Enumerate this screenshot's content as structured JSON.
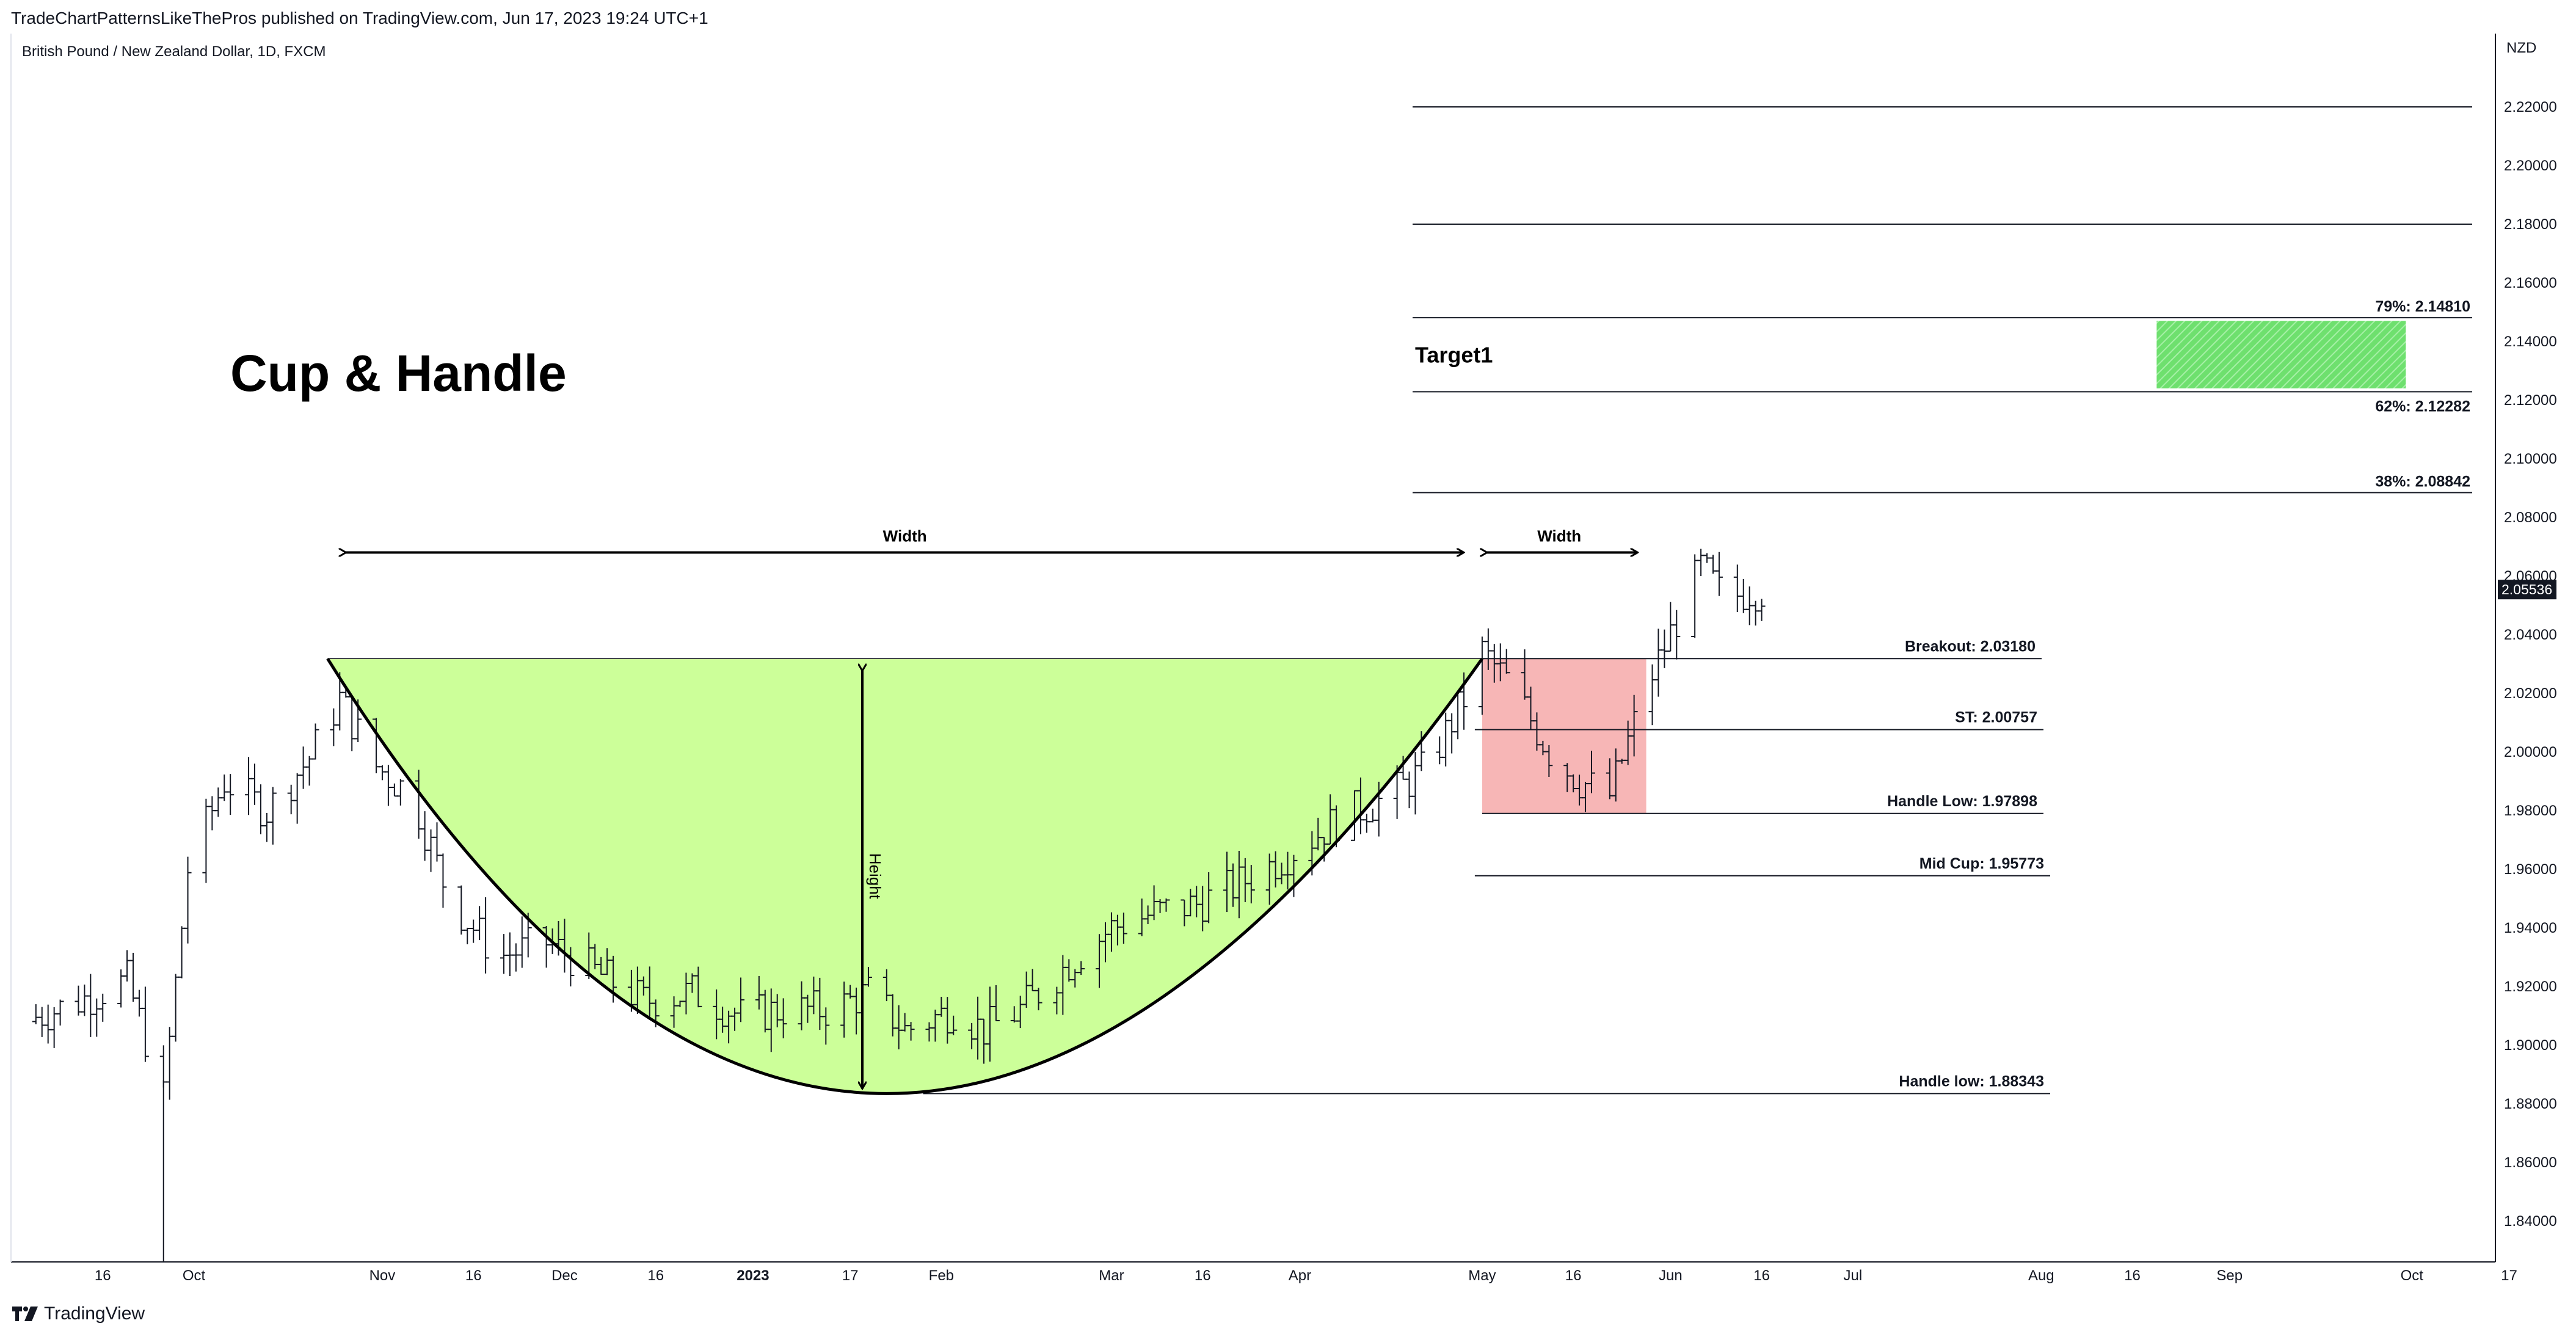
{
  "header": {
    "publisher_line": "TradeChartPatternsLikeThePros published on TradingView.com, Jun 17, 2023 19:24 UTC+1",
    "symbol_line": "British Pound / New Zealand Dollar, 1D, FXCM"
  },
  "footer": {
    "brand": "TradingView"
  },
  "chart_data": {
    "type": "ohlc",
    "currency": "NZD",
    "last_price": "2.05536",
    "y_ticks": [
      "2.22000",
      "2.20000",
      "2.18000",
      "2.16000",
      "2.14000",
      "2.12000",
      "2.10000",
      "2.08000",
      "2.06000",
      "2.04000",
      "2.02000",
      "2.00000",
      "1.98000",
      "1.96000",
      "1.94000",
      "1.92000",
      "1.90000",
      "1.88000",
      "1.86000",
      "1.84000"
    ],
    "y_tick_values": [
      2.22,
      2.2,
      2.18,
      2.16,
      2.14,
      2.12,
      2.1,
      2.08,
      2.06,
      2.04,
      2.02,
      2.0,
      1.98,
      1.96,
      1.94,
      1.92,
      1.9,
      1.88,
      1.86,
      1.84
    ],
    "ylim": [
      1.826,
      2.245
    ],
    "x_ticks": [
      {
        "label": "16",
        "date": "2022-09-16",
        "bold": false
      },
      {
        "label": "Oct",
        "date": "2022-10-01",
        "bold": false
      },
      {
        "label": "Nov",
        "date": "2022-11-01",
        "bold": false
      },
      {
        "label": "16",
        "date": "2022-11-16",
        "bold": false
      },
      {
        "label": "Dec",
        "date": "2022-12-01",
        "bold": false
      },
      {
        "label": "16",
        "date": "2022-12-16",
        "bold": false
      },
      {
        "label": "2023",
        "date": "2023-01-01",
        "bold": true
      },
      {
        "label": "17",
        "date": "2023-01-17",
        "bold": false
      },
      {
        "label": "Feb",
        "date": "2023-02-01",
        "bold": false
      },
      {
        "label": "Mar",
        "date": "2023-03-01",
        "bold": false
      },
      {
        "label": "16",
        "date": "2023-03-16",
        "bold": false
      },
      {
        "label": "Apr",
        "date": "2023-04-01",
        "bold": false
      },
      {
        "label": "May",
        "date": "2023-05-01",
        "bold": false
      },
      {
        "label": "16",
        "date": "2023-05-16",
        "bold": false
      },
      {
        "label": "Jun",
        "date": "2023-06-01",
        "bold": false
      },
      {
        "label": "16",
        "date": "2023-06-16",
        "bold": false
      },
      {
        "label": "Jul",
        "date": "2023-07-01",
        "bold": false
      },
      {
        "label": "Aug",
        "date": "2023-08-01",
        "bold": false
      },
      {
        "label": "16",
        "date": "2023-08-16",
        "bold": false
      },
      {
        "label": "Sep",
        "date": "2023-09-01",
        "bold": false
      },
      {
        "label": "Oct",
        "date": "2023-10-01",
        "bold": false
      },
      {
        "label": "17",
        "date": "2023-10-17",
        "bold": false
      }
    ],
    "price_path": [
      [
        "2022-09-03",
        1.908
      ],
      [
        "2022-09-12",
        1.915
      ],
      [
        "2022-09-20",
        1.922
      ],
      [
        "2022-09-26",
        1.882
      ],
      [
        "2022-09-30",
        1.96
      ],
      [
        "2022-10-06",
        1.99
      ],
      [
        "2022-10-13",
        1.98
      ],
      [
        "2022-10-20",
        1.998
      ],
      [
        "2022-10-25",
        2.018
      ],
      [
        "2022-10-31",
        1.995
      ],
      [
        "2022-11-06",
        1.985
      ],
      [
        "2022-11-12",
        1.95
      ],
      [
        "2022-11-20",
        1.93
      ],
      [
        "2022-11-28",
        1.935
      ],
      [
        "2022-12-06",
        1.925
      ],
      [
        "2022-12-14",
        1.915
      ],
      [
        "2022-12-22",
        1.918
      ],
      [
        "2022-12-30",
        1.91
      ],
      [
        "2023-01-06",
        1.912
      ],
      [
        "2023-01-14",
        1.912
      ],
      [
        "2023-01-20",
        1.918
      ],
      [
        "2023-01-26",
        1.905
      ],
      [
        "2023-02-03",
        1.912
      ],
      [
        "2023-02-08",
        1.905
      ],
      [
        "2023-02-14",
        1.912
      ],
      [
        "2023-02-22",
        1.928
      ],
      [
        "2023-03-01",
        1.94
      ],
      [
        "2023-03-08",
        1.945
      ],
      [
        "2023-03-15",
        1.948
      ],
      [
        "2023-03-22",
        1.955
      ],
      [
        "2023-03-30",
        1.965
      ],
      [
        "2023-04-08",
        1.978
      ],
      [
        "2023-04-16",
        1.985
      ],
      [
        "2023-04-22",
        1.995
      ],
      [
        "2023-04-28",
        2.018
      ],
      [
        "2023-05-01",
        2.034
      ],
      [
        "2023-05-06",
        2.022
      ],
      [
        "2023-05-12",
        2.0
      ],
      [
        "2023-05-17",
        1.99
      ],
      [
        "2023-05-22",
        1.985
      ],
      [
        "2023-05-28",
        2.022
      ],
      [
        "2023-06-02",
        2.045
      ],
      [
        "2023-06-06",
        2.063
      ],
      [
        "2023-06-10",
        2.052
      ],
      [
        "2023-06-14",
        2.055
      ],
      [
        "2023-06-17",
        2.055
      ]
    ],
    "fib_lines": [
      {
        "value": 2.22,
        "label": ""
      },
      {
        "value": 2.18,
        "label": ""
      },
      {
        "value": 2.1481,
        "label": "79%: 2.14810"
      },
      {
        "value": 2.12282,
        "label": "62%: 2.12282"
      },
      {
        "value": 2.08842,
        "label": "38%: 2.08842"
      }
    ],
    "levels": [
      {
        "value": 2.0318,
        "label": "Breakout: 2.03180"
      },
      {
        "value": 2.00757,
        "label": "ST: 2.00757"
      },
      {
        "value": 1.97898,
        "label": "Handle Low: 1.97898"
      },
      {
        "value": 1.95773,
        "label": "Mid Cup: 1.95773"
      },
      {
        "value": 1.88343,
        "label": "Handle low: 1.88343"
      }
    ],
    "target_label": "Target1",
    "target_zone": {
      "from": "2023-08-20",
      "to": "2023-09-30",
      "top": 2.147,
      "bottom": 2.124
    },
    "cup": {
      "start": "2022-10-23",
      "bottom": "2023-01-20",
      "end": "2023-05-01",
      "rim": 2.0318,
      "low": 1.88343
    },
    "handle_box": {
      "from": "2023-05-01",
      "to": "2023-05-28",
      "top": 2.0318,
      "bottom": 1.979
    },
    "annotations": {
      "title": "Cup & Handle",
      "cup_width_label": "Width",
      "handle_width_label": "Width",
      "height_label": "Height"
    },
    "colors": {
      "cup_fill": "#ccff99",
      "handle_fill": "#f7b2b2",
      "target_fill": "#66dd66",
      "line": "#131722"
    }
  }
}
